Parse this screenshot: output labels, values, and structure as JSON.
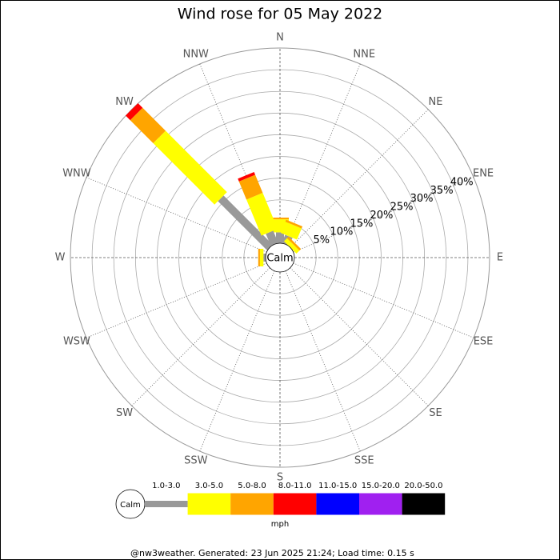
{
  "chart_data": {
    "type": "windrose",
    "title": "Wind rose for 05 May 2022",
    "directions": [
      "N",
      "NNE",
      "NE",
      "ENE",
      "E",
      "ESE",
      "SE",
      "SSE",
      "S",
      "SSW",
      "SW",
      "WSW",
      "W",
      "WNW",
      "NW",
      "NNW"
    ],
    "calm_label": "Calm",
    "unit": "mph",
    "rlim": [
      0,
      45
    ],
    "rticks": [
      {
        "value": 5,
        "label": "5%"
      },
      {
        "value": 10,
        "label": "10%"
      },
      {
        "value": 15,
        "label": "15%"
      },
      {
        "value": 20,
        "label": "20%"
      },
      {
        "value": 25,
        "label": "25%"
      },
      {
        "value": 30,
        "label": "30%"
      },
      {
        "value": 35,
        "label": "35%"
      },
      {
        "value": 40,
        "label": "40%"
      }
    ],
    "series": [
      {
        "name": "1.0-3.0",
        "color": "#999999",
        "values": [
          2.5,
          2,
          0,
          0,
          0,
          0,
          0,
          0,
          0,
          0,
          0,
          0,
          0.5,
          0,
          16,
          3
        ]
      },
      {
        "name": "3.0-5.0",
        "color": "#ffff00",
        "values": [
          3,
          2.8,
          1,
          0,
          0,
          0,
          0,
          0,
          0,
          0,
          0,
          0,
          0.8,
          0,
          20,
          9
        ]
      },
      {
        "name": "5.0-8.0",
        "color": "#ffa500",
        "values": [
          0.4,
          0.5,
          0.5,
          0,
          0,
          0,
          0,
          0,
          0,
          0,
          0,
          0,
          0.4,
          0,
          7.5,
          4.5
        ]
      },
      {
        "name": "8.0-11.0",
        "color": "#ff0000",
        "values": [
          0,
          0,
          0,
          0,
          0,
          0,
          0,
          0,
          0,
          0,
          0,
          0,
          0,
          0,
          1.5,
          0.7
        ]
      },
      {
        "name": "11.0-15.0",
        "color": "#0000ff",
        "values": [
          0,
          0,
          0,
          0,
          0,
          0,
          0,
          0,
          0,
          0,
          0,
          0,
          0,
          0,
          0,
          0
        ]
      },
      {
        "name": "15.0-20.0",
        "color": "#a020f0",
        "values": [
          0,
          0,
          0,
          0,
          0,
          0,
          0,
          0,
          0,
          0,
          0,
          0,
          0,
          0,
          0,
          0
        ]
      },
      {
        "name": "20.0-50.0",
        "color": "#000000",
        "values": [
          0,
          0,
          0,
          0,
          0,
          0,
          0,
          0,
          0,
          0,
          0,
          0,
          0,
          0,
          0,
          0
        ]
      }
    ],
    "footer": "@nw3weather. Generated: 23 Jun 2025 21:24; Load time: 0.15 s"
  }
}
